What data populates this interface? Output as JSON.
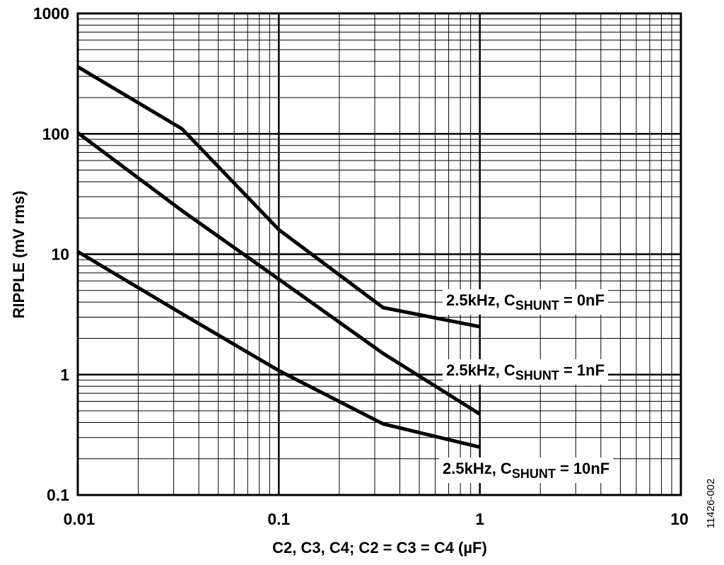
{
  "chart_data": {
    "type": "line",
    "xscale": "log",
    "yscale": "log",
    "xlim": [
      0.01,
      10
    ],
    "ylim": [
      0.1,
      1000
    ],
    "grid": true,
    "xlabel": "C2, C3, C4; C2 = C3 = C4 (µF)",
    "ylabel": "RIPPLE (mV rms)",
    "xticks": [
      {
        "value": 0.01,
        "label": "0.01"
      },
      {
        "value": 0.1,
        "label": "0.1"
      },
      {
        "value": 1,
        "label": "1"
      },
      {
        "value": 10,
        "label": "10"
      }
    ],
    "yticks": [
      {
        "value": 0.1,
        "label": "0.1"
      },
      {
        "value": 1,
        "label": "1"
      },
      {
        "value": 10,
        "label": "10"
      },
      {
        "value": 100,
        "label": "100"
      },
      {
        "value": 1000,
        "label": "1000"
      }
    ],
    "series": [
      {
        "name": "2.5kHz, CSHUNT = 0nF",
        "label_main": "2.5kHz, C",
        "label_sub": "SHUNT",
        "label_tail": " = 0nF",
        "x": [
          0.01,
          0.033,
          0.1,
          0.33,
          1
        ],
        "y": [
          360,
          110,
          16,
          3.6,
          2.5
        ]
      },
      {
        "name": "2.5kHz, CSHUNT = 1nF",
        "label_main": "2.5kHz, C",
        "label_sub": "SHUNT",
        "label_tail": " = 1nF",
        "x": [
          0.01,
          0.033,
          0.1,
          0.33,
          1
        ],
        "y": [
          102,
          23,
          6.2,
          1.5,
          0.47
        ]
      },
      {
        "name": "2.5kHz, CSHUNT = 10nF",
        "label_main": "2.5kHz, C",
        "label_sub": "SHUNT",
        "label_tail": " = 10nF",
        "x": [
          0.01,
          0.033,
          0.1,
          0.33,
          1
        ],
        "y": [
          10.5,
          3.2,
          1.08,
          0.39,
          0.25
        ]
      }
    ],
    "figure_id": "11426-002"
  }
}
